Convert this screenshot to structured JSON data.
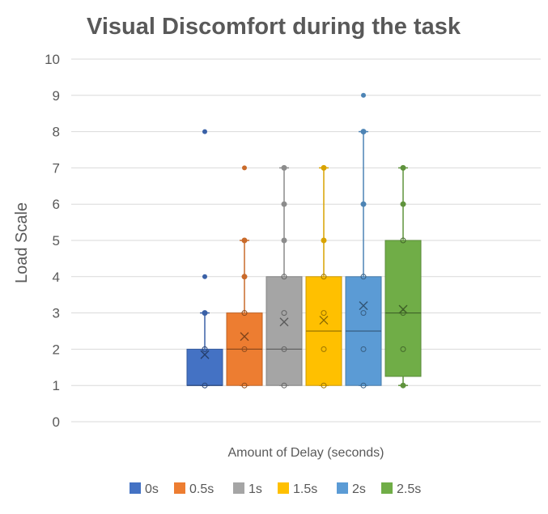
{
  "chart_data": {
    "type": "boxplot",
    "title": "Visual Discomfort during the task",
    "xlabel": "Amount of Delay (seconds)",
    "ylabel": "Load Scale",
    "ylim": [
      0,
      10
    ],
    "yticks": [
      0,
      1,
      2,
      3,
      4,
      5,
      6,
      7,
      8,
      9,
      10
    ],
    "grid": true,
    "legend_position": "bottom",
    "series": [
      {
        "name": "0s",
        "color": "#4472C4",
        "min": 1,
        "q1": 1,
        "median": 1,
        "q3": 2,
        "max": 3,
        "mean": 1.85,
        "points": [
          1,
          2,
          3
        ],
        "outliers": [
          4,
          8
        ]
      },
      {
        "name": "0.5s",
        "color": "#ED7D31",
        "min": 1,
        "q1": 1,
        "median": 2,
        "q3": 3,
        "max": 5,
        "mean": 2.35,
        "points": [
          1,
          2,
          3,
          4,
          5
        ],
        "outliers": [
          7
        ]
      },
      {
        "name": "1s",
        "color": "#A5A5A5",
        "min": 1,
        "q1": 1,
        "median": 2,
        "q3": 4,
        "max": 7,
        "mean": 2.75,
        "points": [
          1,
          2,
          3,
          4,
          5,
          6,
          7
        ],
        "outliers": []
      },
      {
        "name": "1.5s",
        "color": "#FFC000",
        "min": 1,
        "q1": 1,
        "median": 2.5,
        "q3": 4,
        "max": 7,
        "mean": 2.8,
        "points": [
          1,
          2,
          3,
          4,
          5,
          7
        ],
        "outliers": []
      },
      {
        "name": "2s",
        "color": "#5B9BD5",
        "min": 1,
        "q1": 1,
        "median": 2.5,
        "q3": 4,
        "max": 8,
        "mean": 3.2,
        "points": [
          1,
          2,
          3,
          4,
          6,
          8
        ],
        "outliers": [
          9
        ]
      },
      {
        "name": "2.5s",
        "color": "#70AD47",
        "min": 1,
        "q1": 1.25,
        "median": 3,
        "q3": 5,
        "max": 7,
        "mean": 3.1,
        "points": [
          1,
          2,
          3,
          5,
          6,
          7
        ],
        "outliers": []
      }
    ]
  }
}
